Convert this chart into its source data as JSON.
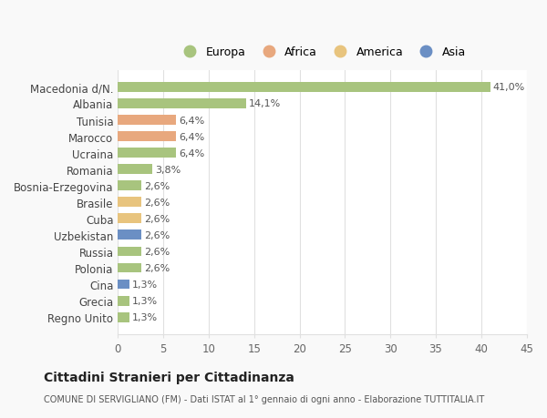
{
  "categories": [
    "Regno Unito",
    "Grecia",
    "Cina",
    "Polonia",
    "Russia",
    "Uzbekistan",
    "Cuba",
    "Brasile",
    "Bosnia-Erzegovina",
    "Romania",
    "Ucraina",
    "Marocco",
    "Tunisia",
    "Albania",
    "Macedonia d/N."
  ],
  "values": [
    1.3,
    1.3,
    1.3,
    2.6,
    2.6,
    2.6,
    2.6,
    2.6,
    2.6,
    3.8,
    6.4,
    6.4,
    6.4,
    14.1,
    41.0
  ],
  "colors": [
    "#a8c47e",
    "#a8c47e",
    "#6b8fc4",
    "#a8c47e",
    "#a8c47e",
    "#6b8fc4",
    "#e8c47e",
    "#e8c47e",
    "#a8c47e",
    "#a8c47e",
    "#a8c47e",
    "#e8a87e",
    "#e8a87e",
    "#a8c47e",
    "#a8c47e"
  ],
  "labels": [
    "1,3%",
    "1,3%",
    "1,3%",
    "2,6%",
    "2,6%",
    "2,6%",
    "2,6%",
    "2,6%",
    "2,6%",
    "3,8%",
    "6,4%",
    "6,4%",
    "6,4%",
    "14,1%",
    "41,0%"
  ],
  "legend": [
    {
      "label": "Europa",
      "color": "#a8c47e"
    },
    {
      "label": "Africa",
      "color": "#e8a87e"
    },
    {
      "label": "America",
      "color": "#e8c47e"
    },
    {
      "label": "Asia",
      "color": "#6b8fc4"
    }
  ],
  "title": "Cittadini Stranieri per Cittadinanza",
  "subtitle": "COMUNE DI SERVIGLIANO (FM) - Dati ISTAT al 1° gennaio di ogni anno - Elaborazione TUTTITALIA.IT",
  "xlabel_ticks": [
    0,
    5,
    10,
    15,
    20,
    25,
    30,
    35,
    40,
    45
  ],
  "xlim": [
    0,
    45
  ],
  "bg_color": "#f9f9f9",
  "plot_bg_color": "#ffffff",
  "grid_color": "#e0e0e0"
}
